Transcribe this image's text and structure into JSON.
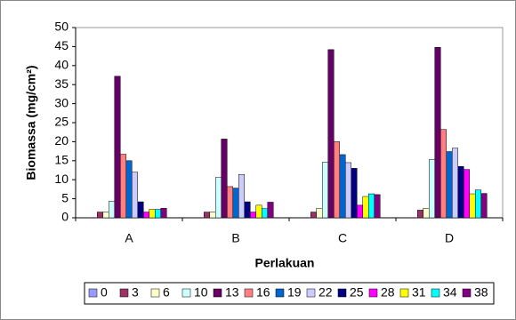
{
  "chart_data": {
    "type": "bar",
    "y_label": "Biomassa (mg/cm²)",
    "x_label": "Perlakuan",
    "categories": [
      "A",
      "B",
      "C",
      "D"
    ],
    "series": [
      {
        "name": "0",
        "color": "#9999ff",
        "values": [
          0,
          0,
          0,
          0
        ]
      },
      {
        "name": "3",
        "color": "#993366",
        "values": [
          1.5,
          1.5,
          1.5,
          2
        ]
      },
      {
        "name": "6",
        "color": "#ffffcc",
        "values": [
          1.5,
          1.5,
          2.5,
          2.5
        ]
      },
      {
        "name": "10",
        "color": "#ccffff",
        "values": [
          4.3,
          10.6,
          14.6,
          15.3
        ]
      },
      {
        "name": "13",
        "color": "#660066",
        "values": [
          37.2,
          20.7,
          44.2,
          44.8
        ]
      },
      {
        "name": "16",
        "color": "#ff8080",
        "values": [
          16.7,
          8.2,
          20,
          23.2
        ]
      },
      {
        "name": "19",
        "color": "#0066cc",
        "values": [
          15,
          7.8,
          16.6,
          17.4
        ]
      },
      {
        "name": "22",
        "color": "#ccccff",
        "values": [
          12,
          11.4,
          14.5,
          18.3
        ]
      },
      {
        "name": "25",
        "color": "#000080",
        "values": [
          4.2,
          4.2,
          13,
          13.5
        ]
      },
      {
        "name": "28",
        "color": "#ff00ff",
        "values": [
          1.5,
          1.5,
          3.3,
          12.7
        ]
      },
      {
        "name": "31",
        "color": "#ffff00",
        "values": [
          2.2,
          3.3,
          5.6,
          6.3
        ]
      },
      {
        "name": "34",
        "color": "#00ffff",
        "values": [
          2.2,
          2.4,
          6.3,
          7.3
        ]
      },
      {
        "name": "38",
        "color": "#800080",
        "values": [
          2.5,
          4.1,
          6.1,
          6.4
        ]
      }
    ],
    "ylim": [
      0,
      50
    ],
    "yticks": [
      0,
      5,
      10,
      15,
      20,
      25,
      30,
      35,
      40,
      45,
      50
    ],
    "grid": false
  }
}
